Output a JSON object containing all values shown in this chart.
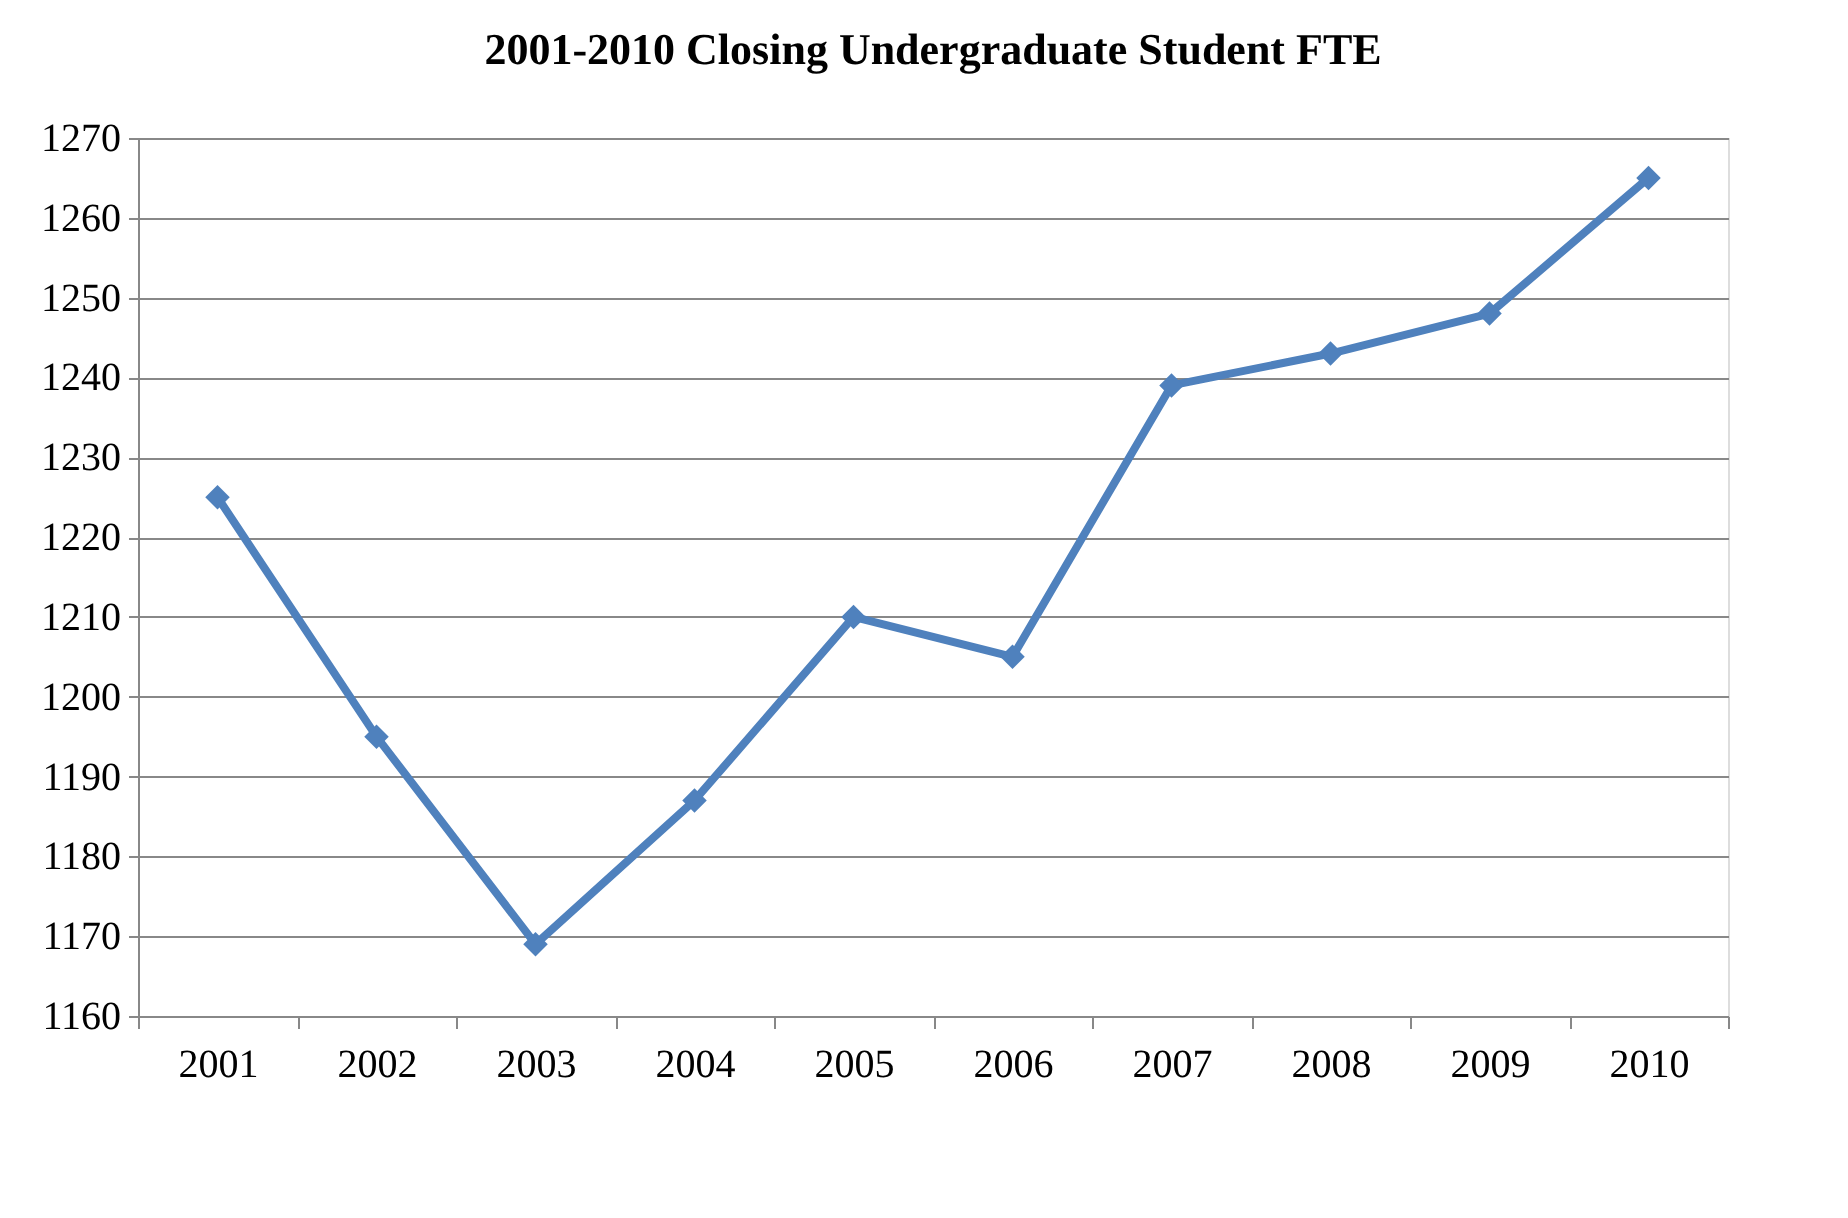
{
  "chart_data": {
    "type": "line",
    "title": "2001-2010 Closing Undergraduate Student FTE",
    "categories": [
      "2001",
      "2002",
      "2003",
      "2004",
      "2005",
      "2006",
      "2007",
      "2008",
      "2009",
      "2010"
    ],
    "values": [
      1225,
      1195,
      1169,
      1187,
      1210,
      1205,
      1239,
      1243,
      1248,
      1265
    ],
    "color": "#4f81bd",
    "ylim": [
      1160,
      1270
    ],
    "yticks": [
      1160,
      1170,
      1180,
      1190,
      1200,
      1210,
      1220,
      1230,
      1240,
      1250,
      1260,
      1270
    ],
    "grid": "y",
    "marker": "diamond",
    "line_style": "solid"
  }
}
